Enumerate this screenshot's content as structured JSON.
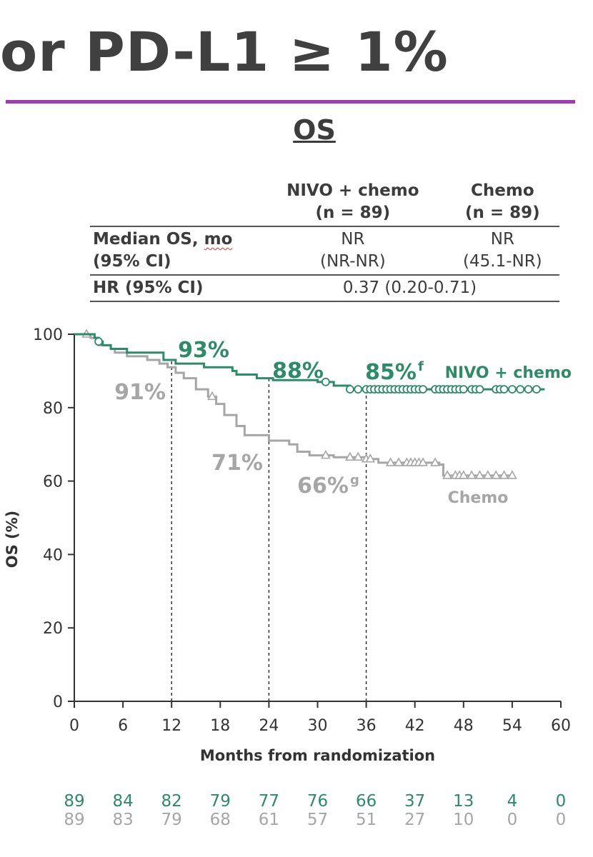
{
  "header": {
    "title": "or PD-L1 ≥ 1%",
    "subtitle": "OS"
  },
  "summary_table": {
    "col_nivo_line1": "NIVO + chemo",
    "col_nivo_line2": "(n = 89)",
    "col_chemo_line1": "Chemo",
    "col_chemo_line2": "(n = 89)",
    "row1_label_line1_a": "Median OS, ",
    "row1_label_line1_b": "mo",
    "row1_label_line2": "(95% CI)",
    "row1_nivo_line1": "NR",
    "row1_nivo_line2": "(NR-NR)",
    "row1_chemo_line1": "NR",
    "row1_chemo_line2": "(45.1-NR)",
    "row2_label": "HR (95% CI)",
    "row2_value": "0.37 (0.20-0.71)"
  },
  "colors": {
    "nivo": "#2e8b6a",
    "chemo": "#a6a6a6",
    "axis": "#333333",
    "accent_rule": "#a23ab5"
  },
  "chart_data": {
    "type": "line",
    "title": "",
    "xlabel": "Months from randomization",
    "ylabel": "OS (%)",
    "xlim": [
      0,
      60
    ],
    "ylim": [
      0,
      100
    ],
    "x_ticks": [
      0,
      6,
      12,
      18,
      24,
      30,
      36,
      42,
      48,
      54,
      60
    ],
    "y_ticks": [
      0,
      20,
      40,
      60,
      80,
      100
    ],
    "grid": false,
    "reference_lines_x": [
      12,
      24,
      36
    ],
    "series": [
      {
        "name": "NIVO + chemo",
        "color": "#2e8b6a",
        "censor_marker": "circle",
        "steps": [
          [
            0,
            100
          ],
          [
            2.5,
            99
          ],
          [
            3.0,
            98
          ],
          [
            3.5,
            97
          ],
          [
            4.5,
            96
          ],
          [
            6.5,
            95
          ],
          [
            11.0,
            93
          ],
          [
            12.5,
            92
          ],
          [
            16.0,
            91
          ],
          [
            19.5,
            90
          ],
          [
            20.0,
            89
          ],
          [
            22.5,
            88
          ],
          [
            24.5,
            87.5
          ],
          [
            30.0,
            87
          ],
          [
            32.0,
            86
          ],
          [
            34.0,
            85
          ],
          [
            58.0,
            85
          ]
        ],
        "censors": [
          3,
          31,
          34,
          35,
          36,
          36.5,
          37,
          37.5,
          38,
          38.5,
          39,
          39.5,
          40,
          40.5,
          41,
          41.5,
          42,
          42.5,
          43,
          44.5,
          45,
          45.5,
          46,
          46.5,
          47,
          47.5,
          48,
          49,
          49.5,
          50,
          52,
          52.5,
          53,
          54,
          55,
          56,
          57
        ],
        "landmarks": [
          {
            "x": 12,
            "label": "93%"
          },
          {
            "x": 24,
            "label": "88%"
          },
          {
            "x": 36,
            "label": "85%",
            "superscript": "f"
          }
        ]
      },
      {
        "name": "Chemo",
        "color": "#a6a6a6",
        "censor_marker": "triangle",
        "steps": [
          [
            0,
            100
          ],
          [
            2.0,
            99
          ],
          [
            3.0,
            97
          ],
          [
            4.5,
            96
          ],
          [
            5.0,
            95
          ],
          [
            6.5,
            94
          ],
          [
            9.0,
            93
          ],
          [
            10.5,
            92
          ],
          [
            11.5,
            91
          ],
          [
            12.5,
            89.5
          ],
          [
            13.5,
            88
          ],
          [
            15.0,
            85
          ],
          [
            16.5,
            83
          ],
          [
            17.5,
            81
          ],
          [
            18.5,
            78
          ],
          [
            20.0,
            75
          ],
          [
            21.0,
            72.5
          ],
          [
            24.0,
            71
          ],
          [
            26.5,
            70
          ],
          [
            27.5,
            68
          ],
          [
            29.0,
            67
          ],
          [
            32.0,
            66.5
          ],
          [
            36.0,
            66
          ],
          [
            37.5,
            65
          ],
          [
            45.0,
            64.5
          ],
          [
            45.5,
            61.5
          ],
          [
            54.0,
            61.5
          ]
        ],
        "censors": [
          1.5,
          17,
          31,
          34,
          35,
          36,
          36.5,
          39,
          40,
          41,
          41.5,
          42,
          42.5,
          43,
          44.5,
          46,
          47,
          47.5,
          48,
          49,
          50,
          51,
          52,
          53,
          54
        ],
        "landmarks": [
          {
            "x": 12,
            "label": "91%"
          },
          {
            "x": 24,
            "label": "71%"
          },
          {
            "x": 36,
            "label": "66%",
            "superscript": "g"
          }
        ]
      }
    ],
    "at_risk": {
      "times": [
        0,
        6,
        12,
        18,
        24,
        30,
        36,
        42,
        48,
        54,
        60
      ],
      "nivo": [
        89,
        84,
        82,
        79,
        77,
        76,
        66,
        37,
        13,
        4,
        0
      ],
      "chemo": [
        89,
        83,
        79,
        68,
        61,
        57,
        51,
        27,
        10,
        0,
        0
      ]
    }
  }
}
